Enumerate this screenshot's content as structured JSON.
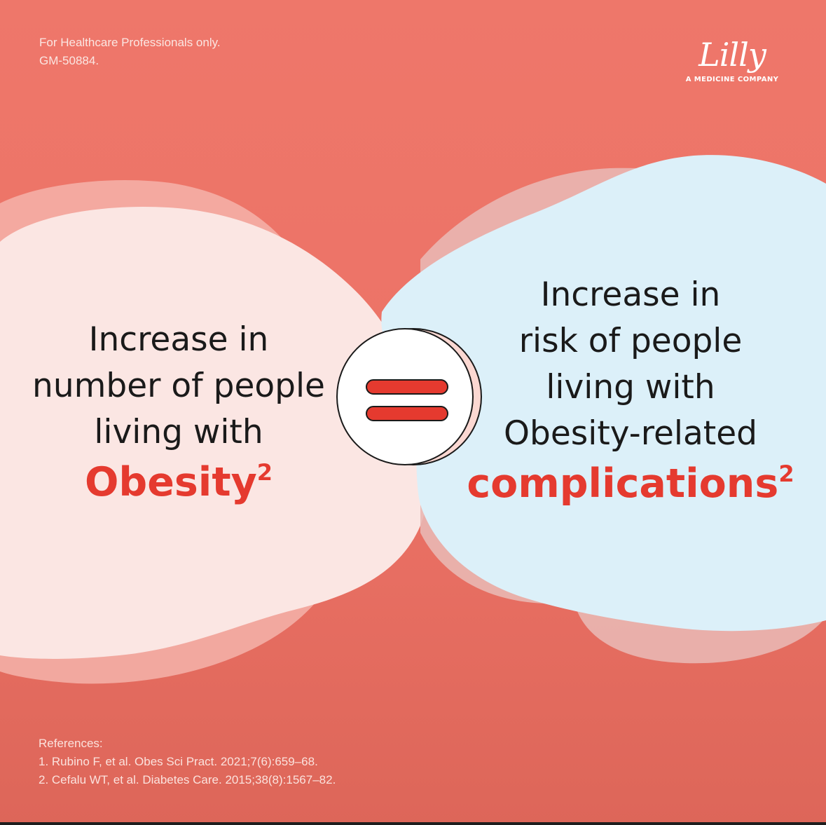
{
  "disclaimer": {
    "line1": "For Healthcare Professionals only.",
    "line2": "GM-50884."
  },
  "logo": {
    "brand": "Lilly",
    "tagline": "A MEDICINE COMPANY"
  },
  "left_statement": {
    "line1": "Increase in",
    "line2": "number of people",
    "line3": "living with",
    "emphasis": "Obesity",
    "superscript": "2"
  },
  "equals_icon": "equals-icon",
  "right_statement": {
    "line1": "Increase in",
    "line2": "risk of people",
    "line3": "living with",
    "line4": "Obesity-related",
    "emphasis": "complications",
    "superscript": "2"
  },
  "references": {
    "heading": "References:",
    "items": [
      "1. Rubino F, et al. Obes Sci Pract. 2021;7(6):659–68.",
      "2. Cefalu WT, et al. Diabetes Care. 2015;38(8):1567–82."
    ]
  },
  "colors": {
    "background": "#ee776a",
    "left_blob": "#fbe6e3",
    "right_blob": "#dcf0f9",
    "accent": "#e53a2f",
    "text": "#1a1a1a"
  }
}
